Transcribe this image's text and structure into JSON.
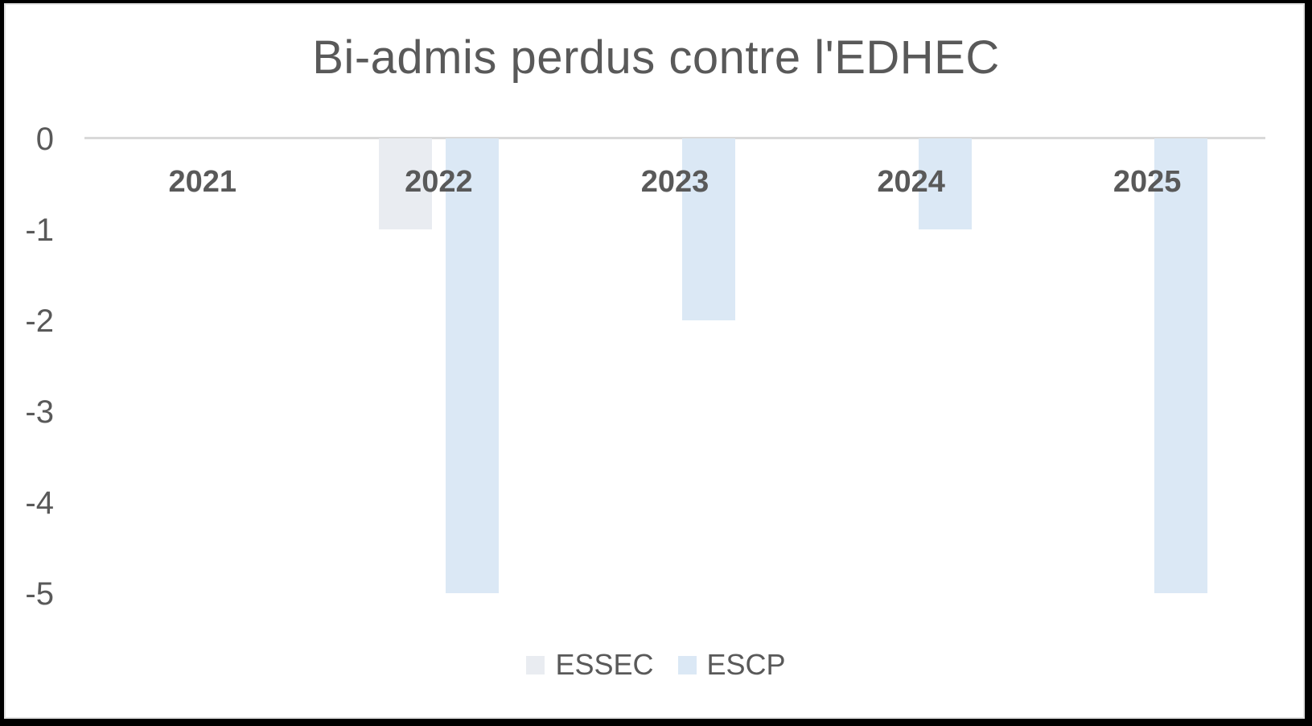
{
  "chart_data": {
    "type": "bar",
    "title": "Bi-admis perdus contre l'EDHEC",
    "categories": [
      "2021",
      "2022",
      "2023",
      "2024",
      "2025"
    ],
    "series": [
      {
        "name": "ESSEC",
        "color": "#e9ecf1",
        "values": [
          0,
          -1,
          0,
          0,
          0
        ]
      },
      {
        "name": "ESCP",
        "color": "#dbe8f5",
        "values": [
          0,
          -5,
          -2,
          -1,
          -5
        ]
      }
    ],
    "yticks": [
      0,
      -1,
      -2,
      -3,
      -4,
      -5
    ],
    "ylim": [
      -5,
      0
    ],
    "xlabel": "",
    "ylabel": "",
    "grid": "zero-baseline-only",
    "legend_position": "bottom-center",
    "text_color": "#595959",
    "gridline_color": "#d9d9d9",
    "background_color": "#ffffff",
    "frame_color": "#000000"
  }
}
